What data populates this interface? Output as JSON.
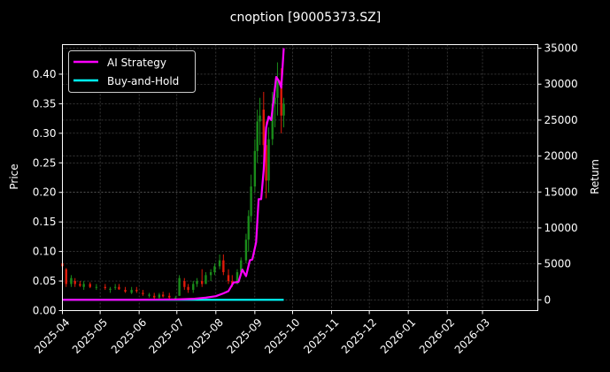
{
  "chart_data": {
    "type": "candlestick+line",
    "title": "cnoption [90005373.SZ]",
    "xlabel": "",
    "ylabel_left": "Price",
    "ylabel_right": "Return",
    "xlim": [
      "2025-04-01",
      "2026-04-14"
    ],
    "ylim_left": [
      0,
      0.45
    ],
    "ylim_right": [
      -1500,
      35500
    ],
    "x_ticks": [
      "2025-04",
      "2025-05",
      "2025-06",
      "2025-07",
      "2025-08",
      "2025-09",
      "2025-10",
      "2025-11",
      "2025-12",
      "2026-01",
      "2026-02",
      "2026-03"
    ],
    "y_ticks_left": [
      "0.00",
      "0.05",
      "0.10",
      "0.15",
      "0.20",
      "0.25",
      "0.30",
      "0.35",
      "0.40"
    ],
    "y_ticks_right": [
      "0",
      "5000",
      "10000",
      "15000",
      "20000",
      "25000",
      "30000",
      "35000"
    ],
    "grid": true,
    "legend": {
      "placement": "top-left",
      "entries": [
        {
          "name": "AI Strategy",
          "color": "#ff00ff"
        },
        {
          "name": "Buy-and-Hold",
          "color": "#00ffff"
        }
      ]
    },
    "colors": {
      "up": "#1a8c1a",
      "down": "#e01a0a",
      "grid": "#555555"
    },
    "candles": [
      [
        "2025-04-01",
        0.08,
        0.08,
        0.07,
        0.075
      ],
      [
        "2025-04-04",
        0.07,
        0.072,
        0.04,
        0.045
      ],
      [
        "2025-04-08",
        0.045,
        0.06,
        0.04,
        0.055
      ],
      [
        "2025-04-11",
        0.05,
        0.055,
        0.04,
        0.045
      ],
      [
        "2025-04-15",
        0.045,
        0.05,
        0.04,
        0.042
      ],
      [
        "2025-04-18",
        0.04,
        0.05,
        0.035,
        0.045
      ],
      [
        "2025-04-23",
        0.045,
        0.048,
        0.038,
        0.04
      ],
      [
        "2025-04-28",
        0.04,
        0.045,
        0.035,
        0.04
      ],
      [
        "2025-05-05",
        0.04,
        0.045,
        0.035,
        0.038
      ],
      [
        "2025-05-09",
        0.035,
        0.04,
        0.03,
        0.037
      ],
      [
        "2025-05-13",
        0.04,
        0.045,
        0.035,
        0.04
      ],
      [
        "2025-05-16",
        0.04,
        0.045,
        0.035,
        0.036
      ],
      [
        "2025-05-21",
        0.035,
        0.04,
        0.03,
        0.032
      ],
      [
        "2025-05-26",
        0.03,
        0.04,
        0.028,
        0.035
      ],
      [
        "2025-05-30",
        0.035,
        0.04,
        0.03,
        0.033
      ],
      [
        "2025-06-04",
        0.03,
        0.035,
        0.025,
        0.028
      ],
      [
        "2025-06-09",
        0.025,
        0.03,
        0.022,
        0.027
      ],
      [
        "2025-06-13",
        0.025,
        0.03,
        0.02,
        0.022
      ],
      [
        "2025-06-17",
        0.022,
        0.03,
        0.02,
        0.027
      ],
      [
        "2025-06-20",
        0.027,
        0.032,
        0.022,
        0.024
      ],
      [
        "2025-06-25",
        0.025,
        0.03,
        0.02,
        0.022
      ],
      [
        "2025-06-30",
        0.02,
        0.025,
        0.018,
        0.022
      ],
      [
        "2025-07-03",
        0.025,
        0.06,
        0.025,
        0.055
      ],
      [
        "2025-07-07",
        0.05,
        0.055,
        0.035,
        0.04
      ],
      [
        "2025-07-10",
        0.04,
        0.045,
        0.03,
        0.035
      ],
      [
        "2025-07-14",
        0.035,
        0.05,
        0.03,
        0.045
      ],
      [
        "2025-07-17",
        0.045,
        0.055,
        0.04,
        0.05
      ],
      [
        "2025-07-21",
        0.05,
        0.07,
        0.04,
        0.045
      ],
      [
        "2025-07-24",
        0.045,
        0.065,
        0.045,
        0.06
      ],
      [
        "2025-07-28",
        0.06,
        0.07,
        0.05,
        0.065
      ],
      [
        "2025-07-31",
        0.065,
        0.08,
        0.06,
        0.075
      ],
      [
        "2025-08-04",
        0.075,
        0.095,
        0.07,
        0.085
      ],
      [
        "2025-08-07",
        0.085,
        0.095,
        0.06,
        0.065
      ],
      [
        "2025-08-11",
        0.06,
        0.07,
        0.045,
        0.05
      ],
      [
        "2025-08-14",
        0.05,
        0.06,
        0.04,
        0.045
      ],
      [
        "2025-08-18",
        0.045,
        0.07,
        0.045,
        0.065
      ],
      [
        "2025-08-21",
        0.065,
        0.09,
        0.06,
        0.085
      ],
      [
        "2025-08-25",
        0.085,
        0.13,
        0.08,
        0.12
      ],
      [
        "2025-08-27",
        0.12,
        0.17,
        0.1,
        0.16
      ],
      [
        "2025-08-29",
        0.16,
        0.23,
        0.15,
        0.21
      ],
      [
        "2025-09-01",
        0.21,
        0.29,
        0.2,
        0.27
      ],
      [
        "2025-09-03",
        0.27,
        0.34,
        0.25,
        0.32
      ],
      [
        "2025-09-05",
        0.32,
        0.36,
        0.28,
        0.33
      ],
      [
        "2025-09-08",
        0.34,
        0.37,
        0.25,
        0.28
      ],
      [
        "2025-09-10",
        0.28,
        0.32,
        0.19,
        0.22
      ],
      [
        "2025-09-12",
        0.22,
        0.31,
        0.2,
        0.29
      ],
      [
        "2025-09-15",
        0.29,
        0.37,
        0.28,
        0.35
      ],
      [
        "2025-09-17",
        0.35,
        0.38,
        0.31,
        0.36
      ],
      [
        "2025-09-19",
        0.36,
        0.42,
        0.33,
        0.39
      ],
      [
        "2025-09-22",
        0.39,
        0.41,
        0.3,
        0.33
      ],
      [
        "2025-09-24",
        0.33,
        0.36,
        0.31,
        0.35
      ]
    ],
    "ai_strategy": [
      [
        "2025-04-01",
        0
      ],
      [
        "2025-05-01",
        0
      ],
      [
        "2025-06-01",
        0
      ],
      [
        "2025-07-01",
        50
      ],
      [
        "2025-07-15",
        150
      ],
      [
        "2025-07-24",
        300
      ],
      [
        "2025-08-01",
        500
      ],
      [
        "2025-08-07",
        900
      ],
      [
        "2025-08-11",
        1200
      ],
      [
        "2025-08-15",
        2400
      ],
      [
        "2025-08-19",
        2500
      ],
      [
        "2025-08-22",
        4200
      ],
      [
        "2025-08-25",
        3300
      ],
      [
        "2025-08-28",
        5500
      ],
      [
        "2025-08-30",
        5600
      ],
      [
        "2025-09-02",
        8000
      ],
      [
        "2025-09-04",
        14000
      ],
      [
        "2025-09-06",
        14000
      ],
      [
        "2025-09-08",
        18000
      ],
      [
        "2025-09-10",
        24000
      ],
      [
        "2025-09-12",
        25500
      ],
      [
        "2025-09-14",
        25000
      ],
      [
        "2025-09-16",
        28000
      ],
      [
        "2025-09-18",
        31000
      ],
      [
        "2025-09-20",
        30500
      ],
      [
        "2025-09-22",
        29500
      ],
      [
        "2025-09-24",
        35000
      ]
    ],
    "buy_and_hold": [
      [
        "2025-04-01",
        0
      ],
      [
        "2025-09-24",
        0
      ]
    ]
  }
}
